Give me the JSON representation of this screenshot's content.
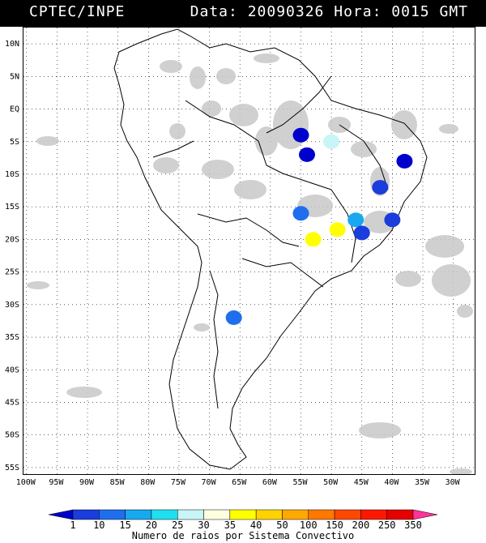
{
  "header": {
    "source": "CPTEC/INPE",
    "date_label": "Data:",
    "date_value": "20090326",
    "time_label": "Hora:",
    "time_value": "0015",
    "timezone": "GMT"
  },
  "axes": {
    "lat_labels": [
      "10N",
      "5N",
      "EQ",
      "5S",
      "10S",
      "15S",
      "20S",
      "25S",
      "30S",
      "35S",
      "40S",
      "45S",
      "50S",
      "55S"
    ],
    "lon_labels": [
      "100W",
      "95W",
      "90W",
      "85W",
      "80W",
      "75W",
      "70W",
      "65W",
      "60W",
      "55W",
      "50W",
      "45W",
      "40W",
      "35W",
      "30W"
    ]
  },
  "colorbar": {
    "values": [
      "1",
      "10",
      "15",
      "20",
      "25",
      "30",
      "35",
      "40",
      "50",
      "100",
      "150",
      "200",
      "250",
      "350"
    ],
    "colors": [
      "#0000cc",
      "#1a3ddb",
      "#1e6eee",
      "#18a8f0",
      "#1ee0f0",
      "#c8f5f5",
      "#fffde0",
      "#ffff00",
      "#ffd200",
      "#ffa800",
      "#ff7800",
      "#ff4800",
      "#ff1800",
      "#e60000",
      "#ff3399"
    ],
    "caption": "Numero de raios por Sistema Convectivo"
  },
  "map": {
    "cloud_color": "#c8c8c8",
    "storm_cells": [
      {
        "lon": -55.0,
        "lat": -4.0,
        "color": "#0000cc"
      },
      {
        "lon": -54.0,
        "lat": -7.0,
        "color": "#0000cc"
      },
      {
        "lon": -50.0,
        "lat": -5.0,
        "color": "#c8f5f5"
      },
      {
        "lon": -38.0,
        "lat": -8.0,
        "color": "#0000cc"
      },
      {
        "lon": -42.0,
        "lat": -12.0,
        "color": "#1a3ddb"
      },
      {
        "lon": -55.0,
        "lat": -16.0,
        "color": "#1e6eee"
      },
      {
        "lon": -46.0,
        "lat": -17.0,
        "color": "#18a8f0"
      },
      {
        "lon": -40.0,
        "lat": -17.0,
        "color": "#1a3ddb"
      },
      {
        "lon": -49.0,
        "lat": -18.5,
        "color": "#ffff00"
      },
      {
        "lon": -53.0,
        "lat": -20.0,
        "color": "#ffff00"
      },
      {
        "lon": -45.0,
        "lat": -19.0,
        "color": "#1a3ddb"
      },
      {
        "lon": -66.0,
        "lat": -32.0,
        "color": "#1e6eee"
      }
    ]
  }
}
